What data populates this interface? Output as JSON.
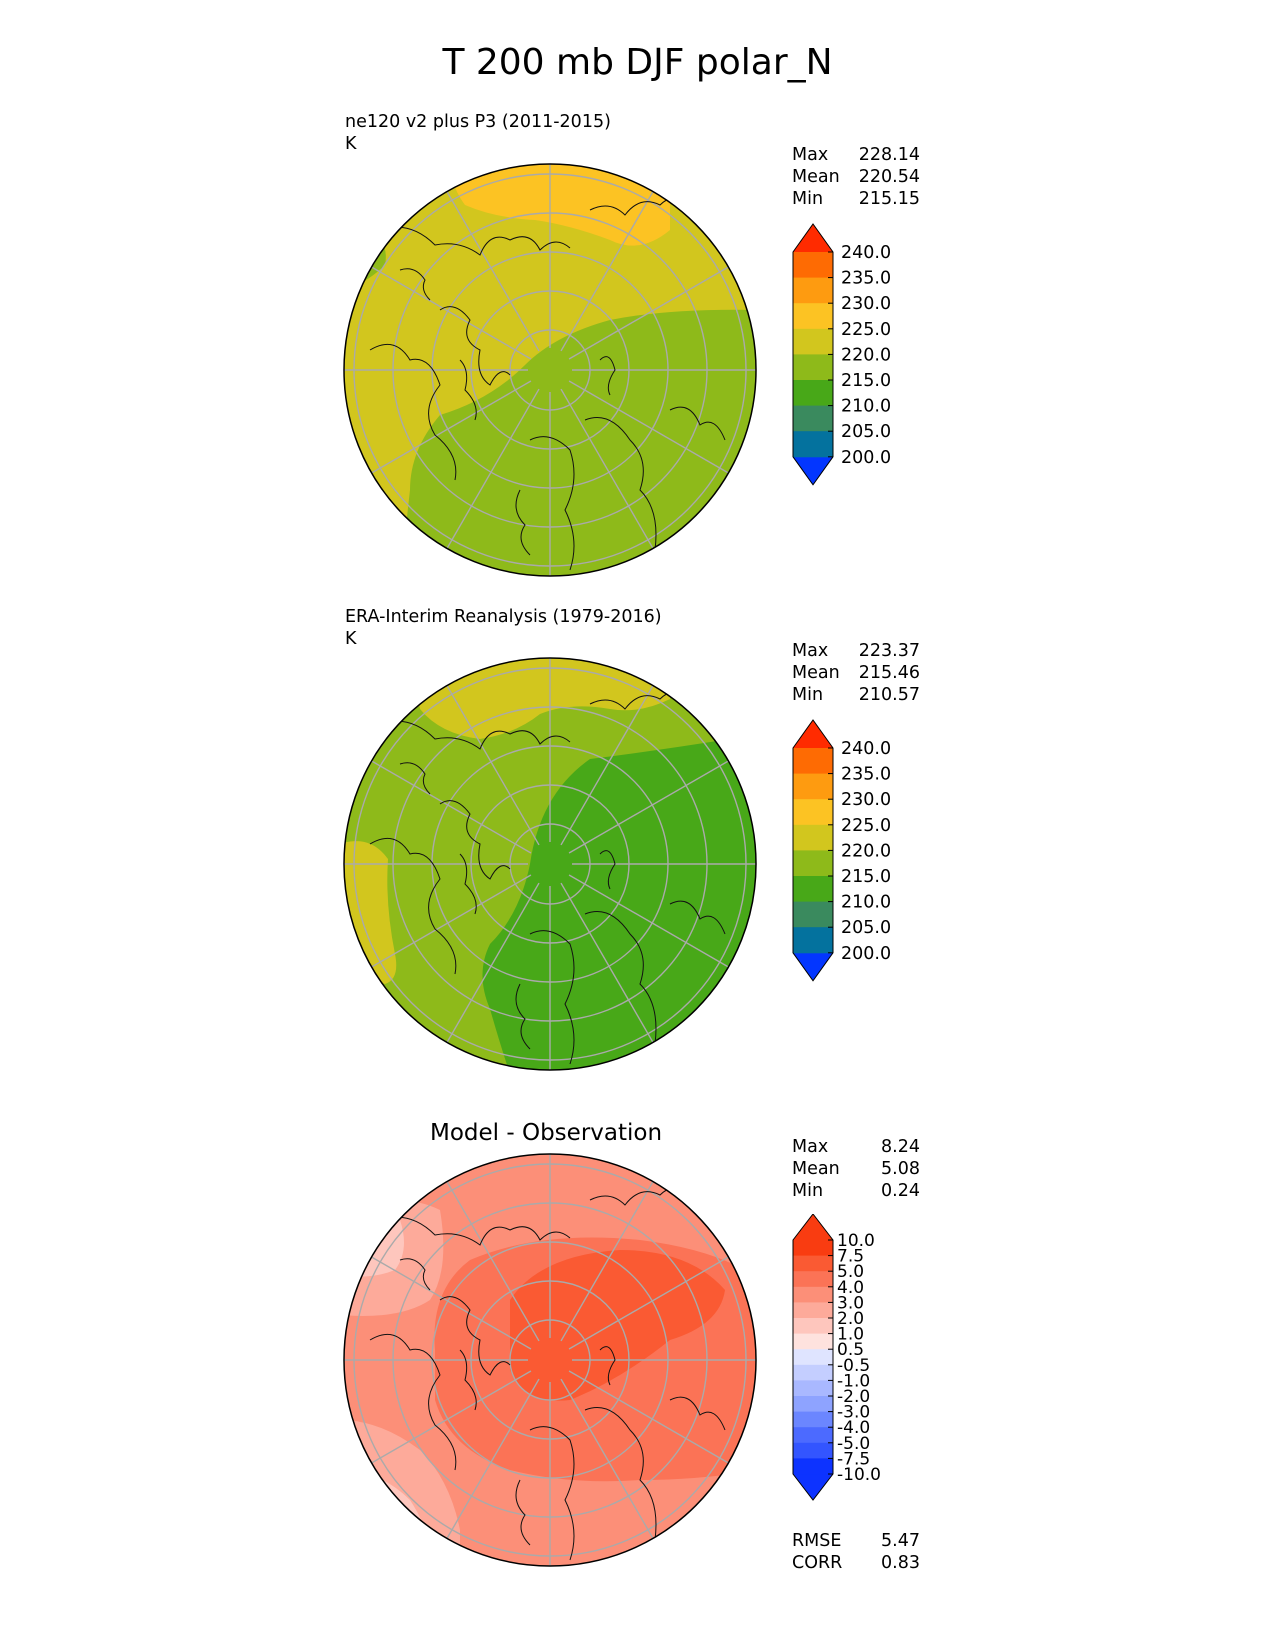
{
  "figure_title": "T 200 mb DJF polar_N",
  "colors": {
    "abs_levels": [
      "#0336ff",
      "#04729e",
      "#3a8a5e",
      "#48a818",
      "#8eba1a",
      "#d2c61e",
      "#fcc323",
      "#fe9b10",
      "#fe6b03",
      "#ff2b00"
    ],
    "diff_levels": [
      "#0d33ff",
      "#3355ff",
      "#4c6aff",
      "#6b86ff",
      "#8ea3ff",
      "#a9b8ff",
      "#c4ceff",
      "#dfe4ff",
      "#ffffff",
      "#fee2de",
      "#fec6bd",
      "#fdaa9a",
      "#fc8f78",
      "#fb7356",
      "#fa5a33",
      "#f93c11"
    ]
  },
  "chart_data": [
    {
      "type": "heatmap",
      "projection": "north polar stereographic",
      "title": "ne120 v2 plus P3 (2011-2015)",
      "units": "K",
      "stats": {
        "max_label": "Max",
        "max": "228.14",
        "mean_label": "Mean",
        "mean": "220.54",
        "min_label": "Min",
        "min": "215.15"
      },
      "colorbar": {
        "levels": [
          195,
          200,
          205,
          210,
          215,
          220,
          225,
          230,
          235,
          240,
          245
        ],
        "tick_labels": [
          "240.0",
          "235.0",
          "230.0",
          "225.0",
          "220.0",
          "215.0",
          "210.0",
          "205.0",
          "200.0"
        ],
        "extend": "both"
      },
      "field_summary": {
        "north_pacific_side": "225-230",
        "eurasia_side": "215-220",
        "north_america_atlantic_side": "220-225",
        "west_edge_patch": "215-220"
      }
    },
    {
      "type": "heatmap",
      "projection": "north polar stereographic",
      "title": "ERA-Interim Reanalysis (1979-2016)",
      "units": "K",
      "stats": {
        "max_label": "Max",
        "max": "223.37",
        "mean_label": "Mean",
        "mean": "215.46",
        "min_label": "Min",
        "min": "210.57"
      },
      "colorbar": {
        "levels": [
          195,
          200,
          205,
          210,
          215,
          220,
          225,
          230,
          235,
          240,
          245
        ],
        "tick_labels": [
          "240.0",
          "235.0",
          "230.0",
          "225.0",
          "220.0",
          "215.0",
          "210.0",
          "205.0",
          "200.0"
        ],
        "extend": "both"
      },
      "field_summary": {
        "pole_and_eurasia": "210-215",
        "north_america": "215-220",
        "north_pacific_side": "220-225",
        "west_edge_patch": "220-225"
      }
    },
    {
      "type": "heatmap",
      "projection": "north polar stereographic",
      "title": "Model - Observation",
      "units": "",
      "stats": {
        "max_label": "Max",
        "max": "8.24",
        "mean_label": "Mean",
        "mean": "5.08",
        "min_label": "Min",
        "min": "0.24"
      },
      "extra_stats": {
        "rmse_label": "RMSE",
        "rmse": "5.47",
        "corr_label": "CORR",
        "corr": "0.83"
      },
      "colorbar": {
        "levels": [
          -12,
          -10,
          -7.5,
          -5,
          -4,
          -3,
          -2,
          -1,
          -0.5,
          0.5,
          1,
          2,
          3,
          4,
          5,
          7.5,
          10,
          12
        ],
        "tick_labels": [
          "10.0",
          "7.5",
          "5.0",
          "4.0",
          "3.0",
          "2.0",
          "1.0",
          "0.5",
          "-0.5",
          "-1.0",
          "-2.0",
          "-3.0",
          "-4.0",
          "-5.0",
          "-7.5",
          "-10.0"
        ],
        "extend": "both"
      },
      "field_summary": {
        "pole": "5-7.5",
        "eurasia_side": "5-7.5",
        "north_america": "4-5",
        "southwest_edge": "0.5-2"
      }
    }
  ]
}
